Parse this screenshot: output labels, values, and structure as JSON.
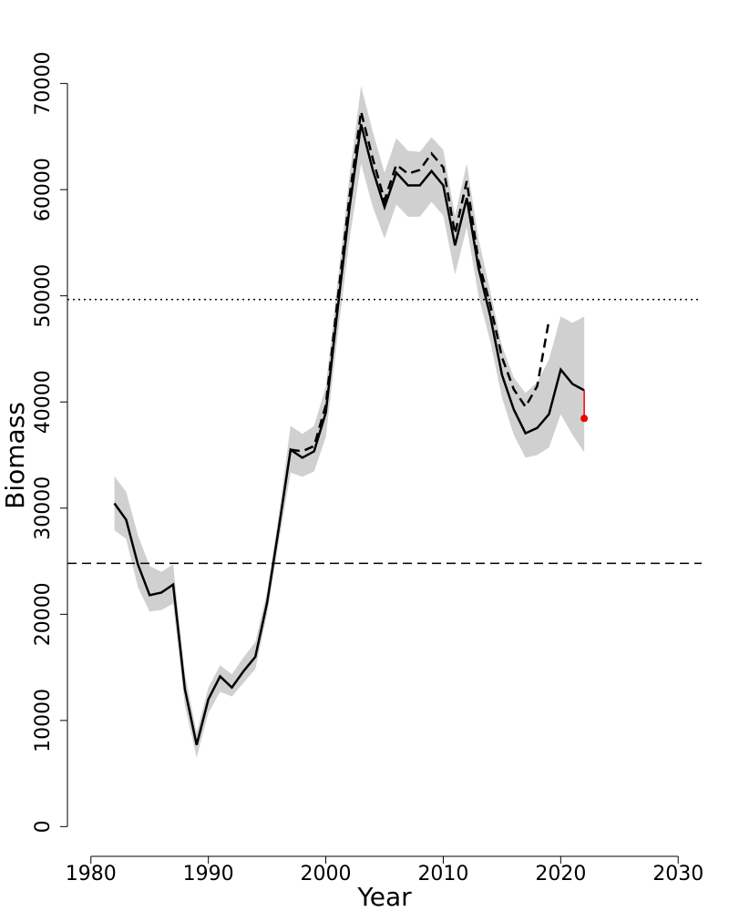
{
  "chart_data": {
    "type": "line",
    "x_label": "Year",
    "y_label": "Biomass",
    "x": [
      1982,
      1983,
      1984,
      1985,
      1986,
      1987,
      1988,
      1989,
      1990,
      1991,
      1992,
      1993,
      1994,
      1995,
      1996,
      1997,
      1998,
      1999,
      2000,
      2001,
      2002,
      2003,
      2004,
      2005,
      2006,
      2007,
      2008,
      2009,
      2010,
      2011,
      2012,
      2013,
      2014,
      2015,
      2016,
      2017,
      2018,
      2019,
      2020,
      2021,
      2022
    ],
    "series": [
      {
        "color": "#000000",
        "dash": "solid",
        "values": [
          30450,
          28900,
          24700,
          21800,
          22050,
          22800,
          12950,
          7700,
          12000,
          14150,
          13100,
          14650,
          16000,
          21100,
          28150,
          35500,
          34750,
          35350,
          39000,
          48700,
          58150,
          66150,
          61850,
          58350,
          61600,
          60400,
          60400,
          61750,
          60400,
          54750,
          59200,
          52600,
          48100,
          42550,
          39300,
          37050,
          37550,
          38850,
          43050,
          41700,
          41100
        ]
      },
      {
        "color": "#000000",
        "dash": "dashed",
        "values": [
          null,
          null,
          null,
          null,
          null,
          null,
          null,
          null,
          null,
          null,
          null,
          null,
          null,
          null,
          null,
          35500,
          35350,
          35850,
          39700,
          49600,
          59200,
          67350,
          62900,
          59000,
          62350,
          61500,
          61850,
          63400,
          62100,
          55850,
          60800,
          53250,
          49150,
          44200,
          41200,
          39550,
          41500,
          47700,
          null,
          null,
          null
        ]
      }
    ],
    "band": {
      "color": "#d0d0d0",
      "upper": [
        33000,
        31550,
        27450,
        24550,
        24000,
        24700,
        14400,
        8850,
        13100,
        15200,
        14350,
        15950,
        17400,
        22150,
        29400,
        37750,
        37000,
        37750,
        41450,
        51300,
        61150,
        69750,
        65450,
        61600,
        64850,
        63650,
        63550,
        64950,
        63750,
        57550,
        62450,
        55400,
        50450,
        45300,
        42300,
        40850,
        41850,
        44000,
        48050,
        47450,
        48050
      ],
      "lower": [
        27900,
        27100,
        22550,
        20250,
        20400,
        21000,
        11400,
        6500,
        10700,
        12700,
        12250,
        13550,
        14850,
        20000,
        26850,
        33350,
        32950,
        33450,
        36700,
        46150,
        55150,
        62450,
        58350,
        55400,
        58600,
        57450,
        57450,
        58850,
        57550,
        52000,
        56450,
        50000,
        45700,
        40400,
        36900,
        34750,
        35000,
        35700,
        38850,
        36900,
        35250
      ]
    },
    "hlines": [
      {
        "value": 49650,
        "dash": "dotted"
      },
      {
        "value": 24800,
        "dash": "dashed"
      }
    ],
    "point": {
      "x": 2022,
      "y": 38450,
      "color": "#ee0000"
    },
    "xlim": [
      1978,
      2032
    ],
    "ylim": [
      -2800,
      72800
    ],
    "xticks": [
      1980,
      1990,
      2000,
      2010,
      2020,
      2030
    ],
    "yticks": [
      0,
      10000,
      20000,
      30000,
      40000,
      50000,
      60000,
      70000
    ]
  }
}
